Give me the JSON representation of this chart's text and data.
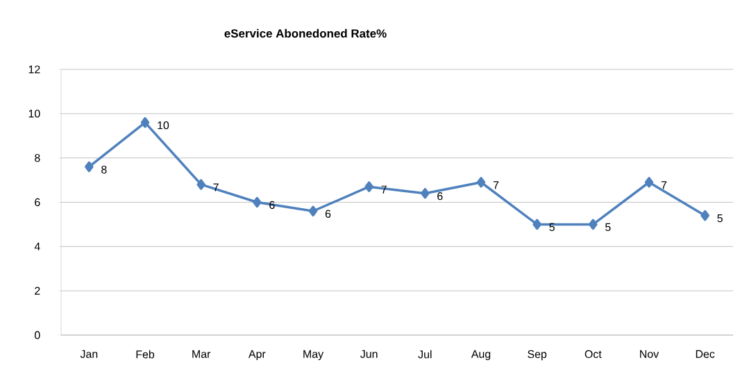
{
  "chart_data": {
    "type": "line",
    "title": "eService Abonedoned Rate%",
    "categories": [
      "Jan",
      "Feb",
      "Mar",
      "Apr",
      "May",
      "Jun",
      "Jul",
      "Aug",
      "Sep",
      "Oct",
      "Nov",
      "Dec"
    ],
    "values": [
      7.6,
      9.6,
      6.8,
      6.0,
      5.6,
      6.7,
      6.4,
      6.9,
      5.0,
      5.0,
      6.9,
      5.4
    ],
    "value_labels": [
      "8",
      "10",
      "7",
      "6",
      "6",
      "7",
      "6",
      "7",
      "5",
      "5",
      "7",
      "5"
    ],
    "color": "#4f81bd",
    "marker": "diamond",
    "line_style": "solid",
    "ylim": [
      0,
      12
    ],
    "yticks": [
      0,
      2,
      4,
      6,
      8,
      10,
      12
    ],
    "grid": "y"
  }
}
